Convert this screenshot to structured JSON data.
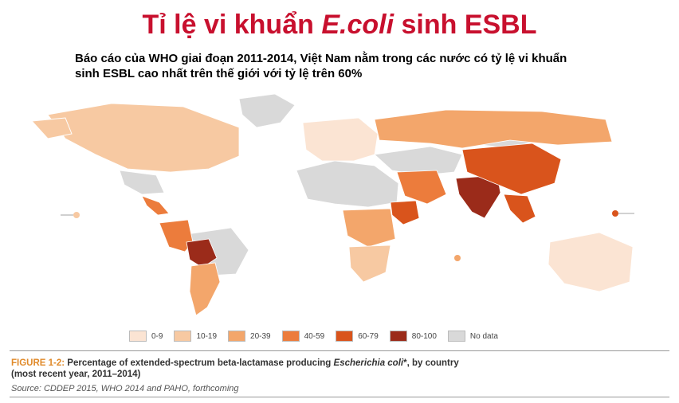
{
  "title": {
    "prefix": "Tỉ lệ vi khuẩn ",
    "emphasis": "E.coli",
    "suffix": " sinh ESBL"
  },
  "subtitle": {
    "line1": "Báo cáo của WHO giai đoạn 2011-2014, Việt Nam nằm trong các nước có tỷ lệ vi khuẩn",
    "line2": "sinh ESBL cao nhất trên thế giới với tỷ lệ trên 60%"
  },
  "legend": [
    {
      "label": "0-9",
      "color": "#fbe4d3"
    },
    {
      "label": "10-19",
      "color": "#f7c9a2"
    },
    {
      "label": "20-39",
      "color": "#f3a66b"
    },
    {
      "label": "40-59",
      "color": "#ec7c3c"
    },
    {
      "label": "60-79",
      "color": "#d9541c"
    },
    {
      "label": "80-100",
      "color": "#9b2b1a"
    },
    {
      "label": "No data",
      "color": "#d9d9d9"
    }
  ],
  "caption": {
    "prefix": "FIGURE 1-2:",
    "text": " Percentage of extended-spectrum beta-lactamase producing ",
    "organism": "Escherichia coli",
    "text2": "*, by country",
    "line2": "(most recent year, 2011–2014)"
  },
  "source": "Source: CDDEP 2015, WHO 2014 and PAHO, forthcoming",
  "regions": [
    {
      "name": "north-america",
      "band": "10-19"
    },
    {
      "name": "central-america",
      "band": "40-59"
    },
    {
      "name": "south-america-west",
      "band": "40-59"
    },
    {
      "name": "bolivia",
      "band": "80-100"
    },
    {
      "name": "argentina",
      "band": "20-39"
    },
    {
      "name": "europe",
      "band": "0-9"
    },
    {
      "name": "russia",
      "band": "20-39"
    },
    {
      "name": "middle-east",
      "band": "40-59"
    },
    {
      "name": "india",
      "band": "80-100"
    },
    {
      "name": "china",
      "band": "60-79"
    },
    {
      "name": "southeast-asia",
      "band": "60-79"
    },
    {
      "name": "ethiopia",
      "band": "60-79"
    },
    {
      "name": "africa-central",
      "band": "20-39"
    },
    {
      "name": "southern-africa",
      "band": "10-19"
    },
    {
      "name": "australia",
      "band": "0-9"
    }
  ]
}
